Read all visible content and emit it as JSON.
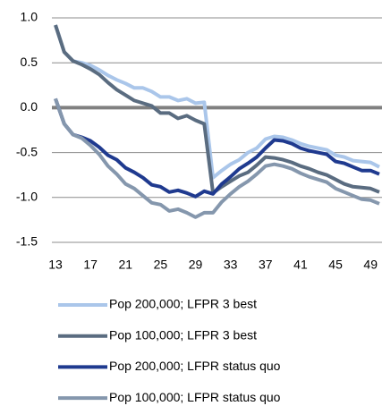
{
  "chart_data": {
    "type": "line",
    "x": [
      13,
      14,
      15,
      16,
      17,
      18,
      19,
      20,
      21,
      22,
      23,
      24,
      25,
      26,
      27,
      28,
      29,
      30,
      31,
      32,
      33,
      34,
      35,
      36,
      37,
      38,
      39,
      40,
      41,
      42,
      43,
      44,
      45,
      46,
      47,
      48,
      49,
      50
    ],
    "xlim": [
      13,
      50
    ],
    "xticks": [
      13,
      17,
      21,
      25,
      29,
      33,
      37,
      41,
      45,
      49
    ],
    "ylim": [
      -1.5,
      1.0
    ],
    "yticks": [
      {
        "value": 1.0,
        "label": "1.0"
      },
      {
        "value": 0.5,
        "label": "0.5"
      },
      {
        "value": 0,
        "label": "0.0"
      },
      -0.5,
      {
        "value": -1.0,
        "label": "-1.0"
      },
      -1.5
    ],
    "grid": true,
    "series": [
      {
        "name": "Pop 200,000; LFPR 3 best",
        "color": "#aac6ea",
        "values": [
          0.92,
          0.62,
          0.52,
          0.5,
          0.47,
          0.42,
          0.36,
          0.31,
          0.27,
          0.22,
          0.22,
          0.18,
          0.12,
          0.12,
          0.08,
          0.1,
          0.05,
          0.06,
          -0.78,
          -0.7,
          -0.63,
          -0.58,
          -0.5,
          -0.45,
          -0.35,
          -0.32,
          -0.33,
          -0.36,
          -0.4,
          -0.43,
          -0.45,
          -0.47,
          -0.53,
          -0.55,
          -0.59,
          -0.6,
          -0.61,
          -0.66
        ]
      },
      {
        "name": "Pop 100,000; LFPR 3 best",
        "color": "#5a6c80",
        "values": [
          0.92,
          0.62,
          0.52,
          0.48,
          0.43,
          0.37,
          0.28,
          0.2,
          0.14,
          0.08,
          0.05,
          0.02,
          -0.06,
          -0.06,
          -0.12,
          -0.09,
          -0.14,
          -0.18,
          -0.95,
          -0.88,
          -0.82,
          -0.76,
          -0.72,
          -0.64,
          -0.55,
          -0.56,
          -0.58,
          -0.61,
          -0.65,
          -0.68,
          -0.72,
          -0.75,
          -0.8,
          -0.85,
          -0.88,
          -0.89,
          -0.9,
          -0.94
        ]
      },
      {
        "name": "Pop 200,000; LFPR status quo",
        "color": "#1f3a8f",
        "values": [
          0.1,
          -0.18,
          -0.3,
          -0.33,
          -0.37,
          -0.44,
          -0.53,
          -0.58,
          -0.67,
          -0.72,
          -0.78,
          -0.86,
          -0.88,
          -0.94,
          -0.92,
          -0.95,
          -0.99,
          -0.93,
          -0.96,
          -0.85,
          -0.77,
          -0.68,
          -0.62,
          -0.55,
          -0.45,
          -0.36,
          -0.37,
          -0.4,
          -0.45,
          -0.48,
          -0.5,
          -0.52,
          -0.6,
          -0.62,
          -0.66,
          -0.7,
          -0.7,
          -0.74
        ]
      },
      {
        "name": "Pop 100,000; LFPR status quo",
        "color": "#8597ad",
        "values": [
          0.1,
          -0.18,
          -0.3,
          -0.34,
          -0.42,
          -0.52,
          -0.65,
          -0.74,
          -0.85,
          -0.9,
          -0.98,
          -1.06,
          -1.08,
          -1.15,
          -1.13,
          -1.17,
          -1.22,
          -1.17,
          -1.17,
          -1.05,
          -0.96,
          -0.88,
          -0.82,
          -0.74,
          -0.65,
          -0.63,
          -0.65,
          -0.68,
          -0.73,
          -0.77,
          -0.8,
          -0.83,
          -0.9,
          -0.94,
          -0.98,
          -1.02,
          -1.03,
          -1.07
        ]
      }
    ]
  }
}
